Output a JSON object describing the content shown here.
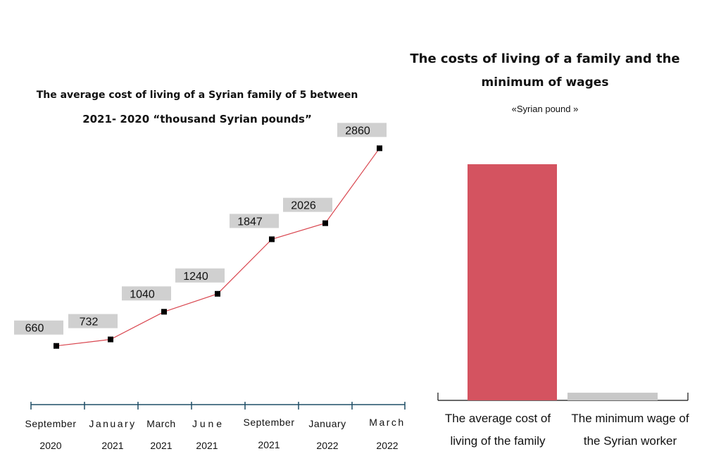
{
  "chart_data": [
    {
      "type": "line",
      "title_line1": "The average cost of living of a Syrian family of 5 between",
      "title_line2": "2021- 2020 “thousand Syrian pounds”",
      "categories": [
        {
          "month": "September",
          "year": "2020"
        },
        {
          "month": "January",
          "year": "2021"
        },
        {
          "month": "March",
          "year": "2021"
        },
        {
          "month": "J u n e",
          "year": "2021"
        },
        {
          "month": "September",
          "year": "2021"
        },
        {
          "month": "January",
          "year": "2022"
        },
        {
          "month": "March",
          "year": "2022"
        }
      ],
      "values": [
        660,
        732,
        1040,
        1240,
        1847,
        2026,
        2860
      ],
      "labels": [
        "660",
        "732",
        "1040",
        "1240",
        "1847",
        "2026",
        "2860"
      ],
      "line_color": "#d9464f",
      "label_bg_color": "#d0d0d0"
    },
    {
      "type": "bar",
      "title_line1": "The costs of living of a family and the",
      "title_line2": "minimum of wages",
      "subtitle": "«Syrian pound »",
      "categories": [
        {
          "line1": "The average cost of",
          "line2": "living of the family"
        },
        {
          "line1": "The minimum wage of",
          "line2": "the Syrian worker"
        }
      ],
      "values": [
        2860000,
        92970
      ],
      "colors": [
        "#d45360",
        "#c8c8c8"
      ]
    }
  ]
}
